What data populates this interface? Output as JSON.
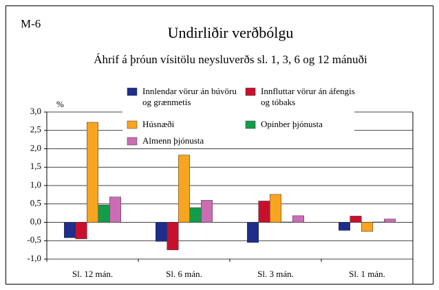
{
  "chart_data": {
    "type": "bar",
    "figure_label": "M-6",
    "title": "Undirliðir verðbólgu",
    "subtitle": "Áhrif á þróun vísitölu neysluverðs sl. 1, 3, 6 og 12 mánuði",
    "y_label": "%",
    "categories": [
      "Sl. 12 mán.",
      "Sl. 6 mán.",
      "Sl. 3 mán.",
      "Sl. 1 mán."
    ],
    "series": [
      {
        "name": "Innlendar vörur án búvöru og grænmetis",
        "color": "#1f2d8c",
        "values": [
          -0.42,
          -0.52,
          -0.55,
          -0.22
        ]
      },
      {
        "name": "Innfluttar vörur án áfengis og tóbaks",
        "color": "#c8102e",
        "values": [
          -0.45,
          -0.75,
          0.58,
          0.17
        ]
      },
      {
        "name": "Húsnæði",
        "color": "#f8a41f",
        "values": [
          2.72,
          1.83,
          0.76,
          -0.25
        ]
      },
      {
        "name": "Opinber þjónusta",
        "color": "#149c4a",
        "values": [
          0.47,
          0.4,
          0.01,
          0.01
        ]
      },
      {
        "name": "Almenn þjónusta",
        "color": "#cc6db4",
        "values": [
          0.69,
          0.6,
          0.18,
          0.09
        ]
      }
    ],
    "ylim": [
      -1.0,
      3.0
    ],
    "yticks": [
      {
        "value": -1.0,
        "label": "-1,0"
      },
      {
        "value": -0.5,
        "label": "-0,5"
      },
      {
        "value": 0.0,
        "label": "0,0"
      },
      {
        "value": 0.5,
        "label": "0,5"
      },
      {
        "value": 1.0,
        "label": "1,0"
      },
      {
        "value": 1.5,
        "label": "1,5"
      },
      {
        "value": 2.0,
        "label": "2,0"
      },
      {
        "value": 2.5,
        "label": "2,5"
      },
      {
        "value": 3.0,
        "label": "3,0"
      }
    ],
    "grid": true
  }
}
